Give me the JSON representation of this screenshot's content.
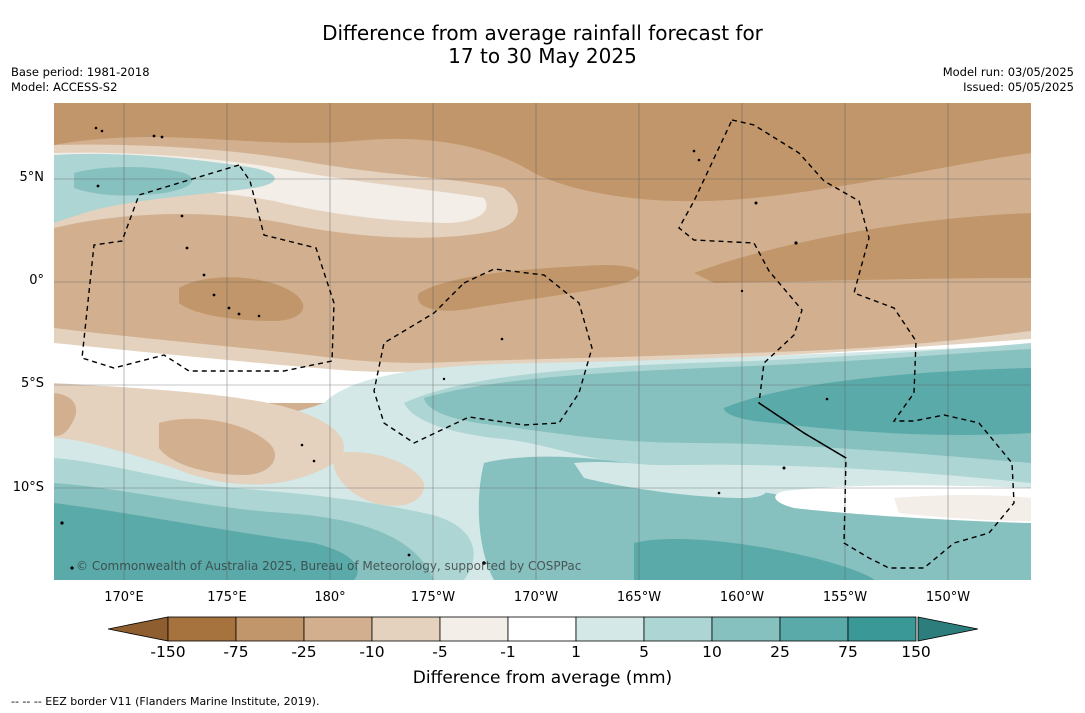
{
  "header": {
    "title_line1": "Difference from average rainfall forecast for",
    "title_line2": "17 to 30 May 2025",
    "base_period": "Base period: 1981-2018",
    "model": "Model: ACCESS-S2",
    "model_run": "Model run: 03/05/2025",
    "issued": "Issued: 05/05/2025"
  },
  "map": {
    "credit": "© Commonwealth of Australia 2025, Bureau of Meteorology, supported by COSPPac",
    "lat_labels": [
      "5°N",
      "0°",
      "5°S",
      "10°S"
    ],
    "lon_labels": [
      "170°E",
      "175°E",
      "180°",
      "175°W",
      "170°W",
      "165°W",
      "160°W",
      "155°W",
      "150°W"
    ],
    "colors": {
      "dry_150": "#a6723e",
      "dry_75": "#c1966a",
      "dry_25": "#d2b08f",
      "dry_10": "#e4d2bf",
      "dry_5": "#f3eee8",
      "neutral": "#ffffff",
      "wet_5": "#d3e8e7",
      "wet_10": "#acd5d3",
      "wet_25": "#86c0bf",
      "wet_75": "#5aaaa9",
      "wet_150": "#3a9896"
    }
  },
  "legend": {
    "tick_labels": [
      "-150",
      "-75",
      "-25",
      "-10",
      "-5",
      "-1",
      "1",
      "5",
      "10",
      "25",
      "75",
      "150"
    ],
    "title": "Difference from average (mm)",
    "colors": [
      "#a6723e",
      "#c1966a",
      "#d2b08f",
      "#e4d2bf",
      "#f3eee8",
      "#ffffff",
      "#d3e8e7",
      "#acd5d3",
      "#86c0bf",
      "#5aaaa9",
      "#3a9896"
    ],
    "end_low_color": "#8f5e30",
    "end_high_color": "#2c7d7b"
  },
  "footnote": "--  --  -- EEZ border V11 (Flanders Marine Institute, 2019)."
}
